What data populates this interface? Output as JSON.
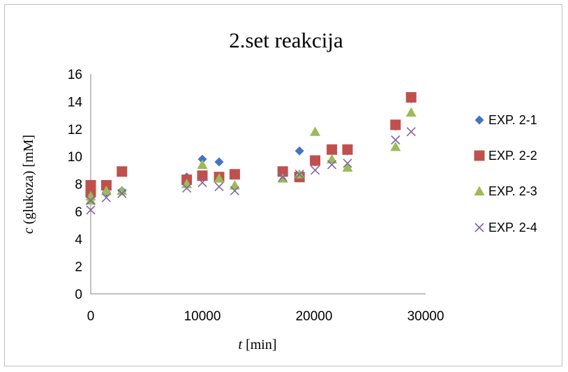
{
  "chart_data": {
    "type": "scatter",
    "title": "2.set reakcija",
    "xlabel_italic": "t",
    "xlabel_rest": " [min]",
    "ylabel_italic": "c",
    "ylabel_rest": " (glukoza) [mM]",
    "xlim": [
      0,
      30000
    ],
    "ylim": [
      0,
      16
    ],
    "xticks": [
      0,
      10000,
      20000,
      30000
    ],
    "yticks": [
      0,
      2,
      4,
      6,
      8,
      10,
      12,
      14,
      16
    ],
    "grid": false,
    "legend_position": "right",
    "series": [
      {
        "name": "EXP. 2-1",
        "marker": "diamond",
        "color": "#4472C4",
        "x": [
          0,
          0,
          1400,
          2800,
          8600,
          10000,
          11500,
          17200,
          18700,
          20100,
          21600,
          23000,
          27300,
          28700
        ],
        "y": [
          7.1,
          7.0,
          7.4,
          7.5,
          8.5,
          9.8,
          9.6,
          8.9,
          10.4,
          9.6,
          10.4,
          10.4,
          12.2,
          14.2
        ]
      },
      {
        "name": "EXP. 2-2",
        "marker": "square",
        "color": "#C0504D",
        "x": [
          0,
          0,
          1400,
          2800,
          8600,
          10000,
          11500,
          12900,
          17200,
          18700,
          20100,
          21600,
          23000,
          27300,
          28700
        ],
        "y": [
          7.4,
          7.9,
          7.9,
          8.9,
          8.3,
          8.6,
          8.5,
          8.7,
          8.9,
          8.5,
          9.7,
          10.5,
          10.5,
          12.3,
          14.3
        ]
      },
      {
        "name": "EXP. 2-3",
        "marker": "triangle",
        "color": "#9BBB59",
        "x": [
          0,
          0,
          1400,
          2800,
          8600,
          10000,
          11500,
          12900,
          17200,
          18700,
          20100,
          21600,
          23000,
          27300,
          28700
        ],
        "y": [
          6.8,
          7.1,
          7.5,
          7.5,
          8.0,
          9.4,
          8.4,
          7.9,
          8.4,
          8.7,
          11.8,
          9.8,
          9.2,
          10.7,
          13.2
        ]
      },
      {
        "name": "EXP. 2-4",
        "marker": "x",
        "color": "#8064A2",
        "x": [
          0,
          0,
          1400,
          2800,
          8600,
          10000,
          11500,
          12900,
          17200,
          18700,
          20100,
          21600,
          23000,
          27300,
          28700
        ],
        "y": [
          6.1,
          6.8,
          7.0,
          7.3,
          7.7,
          8.1,
          7.8,
          7.5,
          8.5,
          8.7,
          9.0,
          9.4,
          9.5,
          11.2,
          11.8
        ]
      }
    ]
  }
}
